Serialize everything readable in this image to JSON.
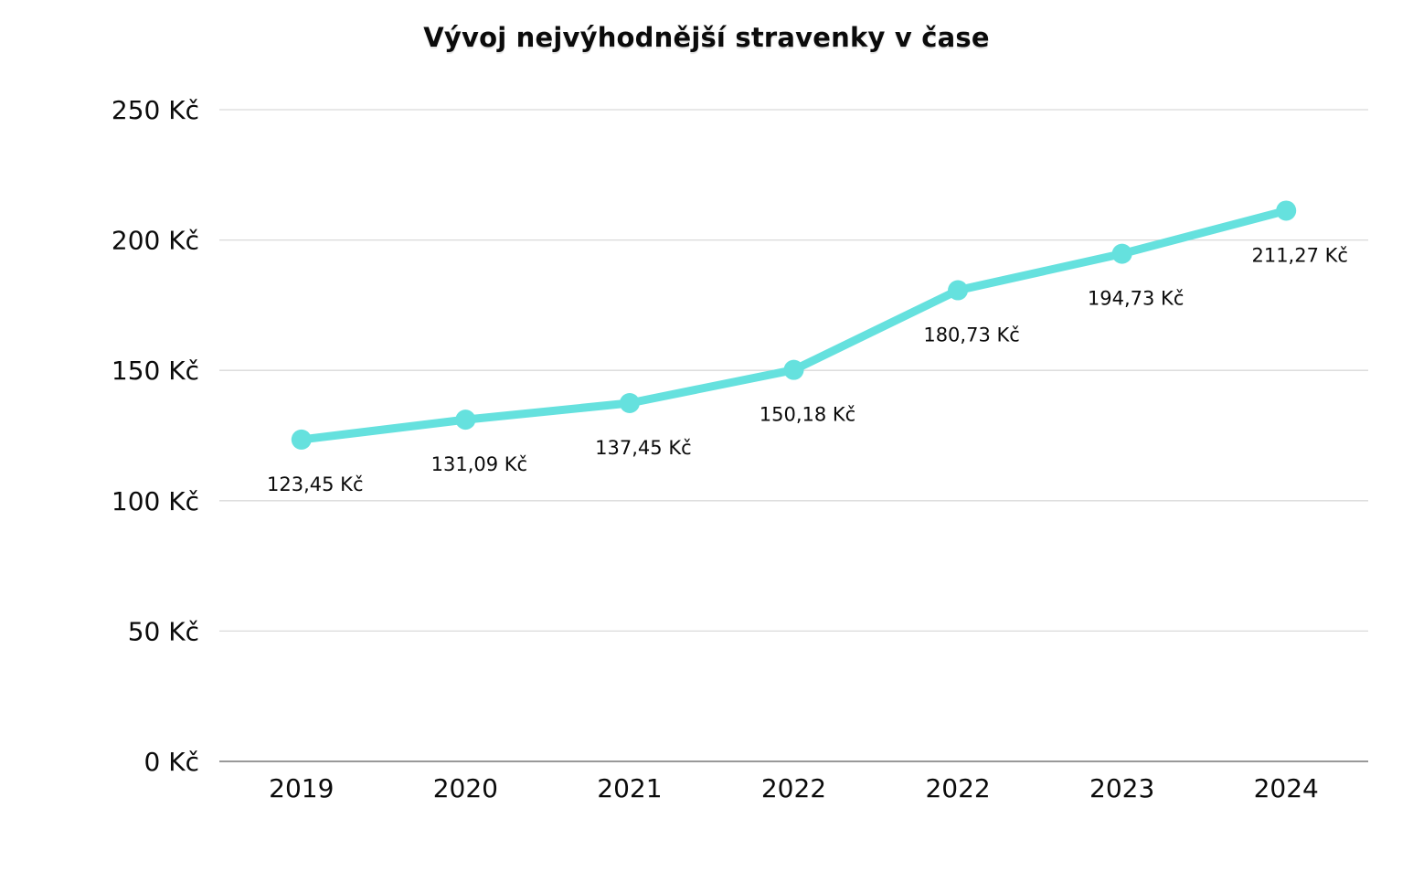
{
  "chart_data": {
    "type": "line",
    "title": "Vývoj nejvýhodnější stravenky v čase",
    "categories": [
      "2019",
      "2020",
      "2021",
      "2022",
      "2022",
      "2023",
      "2024"
    ],
    "values": [
      123.45,
      131.09,
      137.45,
      150.18,
      180.73,
      194.73,
      211.27
    ],
    "point_labels": [
      "123,45 Kč",
      "131,09 Kč",
      "137,45 Kč",
      "150,18 Kč",
      "180,73 Kč",
      "194,73 Kč",
      "211,27 Kč"
    ],
    "y_ticks": [
      {
        "value": 0,
        "label": "0 Kč"
      },
      {
        "value": 50,
        "label": "50 Kč"
      },
      {
        "value": 100,
        "label": "100 Kč"
      },
      {
        "value": 150,
        "label": "150 Kč"
      },
      {
        "value": 200,
        "label": "200 Kč"
      },
      {
        "value": 250,
        "label": "250 Kč"
      }
    ],
    "xlabel": "",
    "ylabel": "",
    "ylim": [
      0,
      250
    ],
    "grid": true,
    "legend": false,
    "line_color": "#65E1DE",
    "grid_color": "#d9d9d9",
    "axis_color": "#999999",
    "text_color": "#0b0b0b",
    "background_color": "#ffffff"
  }
}
